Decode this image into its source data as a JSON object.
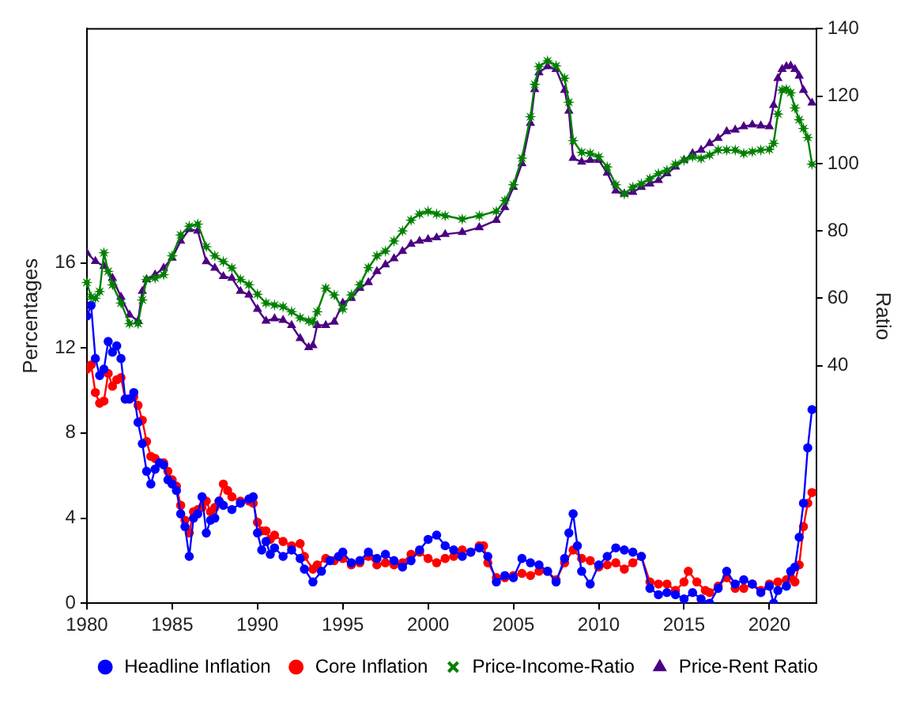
{
  "chart_data": {
    "type": "line",
    "ylabel": "Percentages",
    "y2label": "Ratio",
    "xlim": [
      1980,
      2022.75
    ],
    "xticks": [
      1980,
      1985,
      1990,
      1995,
      2000,
      2005,
      2010,
      2015,
      2020
    ],
    "ylim": [
      0,
      27
    ],
    "yticks": [
      0,
      4,
      8,
      12,
      16
    ],
    "y2lim": [
      -30.5,
      140
    ],
    "y2ticks": [
      40,
      60,
      80,
      100,
      120,
      140
    ],
    "grid": false,
    "legend": "bottom",
    "line_style": "solid",
    "series": [
      {
        "name": "Headline Inflation",
        "color": "#0000ff",
        "marker": "circle",
        "x": [
          1980,
          1980.25,
          1980.5,
          1980.75,
          1981,
          1981.25,
          1981.5,
          1981.75,
          1982,
          1982.25,
          1982.5,
          1982.75,
          1983,
          1983.25,
          1983.5,
          1983.75,
          1984,
          1984.25,
          1984.5,
          1984.75,
          1985,
          1985.25,
          1985.5,
          1985.75,
          1986,
          1986.25,
          1986.5,
          1986.75,
          1987,
          1987.25,
          1987.5,
          1987.75,
          1988,
          1988.5,
          1989,
          1989.5,
          1989.75,
          1990,
          1990.25,
          1990.5,
          1990.75,
          1991,
          1991.5,
          1992,
          1992.5,
          1992.75,
          1993.25,
          1993.75,
          1994.25,
          1994.75,
          1995,
          1995.5,
          1996,
          1996.5,
          1997,
          1997.5,
          1998,
          1998.5,
          1999,
          1999.5,
          2000,
          2000.5,
          2001,
          2001.5,
          2002,
          2002.5,
          2003,
          2003.5,
          2004,
          2004.5,
          2005,
          2005.5,
          2006,
          2006.5,
          2007,
          2007.5,
          2008,
          2008.25,
          2008.5,
          2008.75,
          2009,
          2009.5,
          2010,
          2010.5,
          2011,
          2011.5,
          2012,
          2012.5,
          2013,
          2013.5,
          2014,
          2014.5,
          2015,
          2015.5,
          2016,
          2016.5,
          2017,
          2017.5,
          2018,
          2018.5,
          2019,
          2019.5,
          2020,
          2020.25,
          2020.5,
          2021,
          2021.25,
          2021.5,
          2021.75,
          2022,
          2022.25,
          2022.5
        ],
        "values": [
          13.5,
          14,
          11.5,
          10.7,
          11,
          12.3,
          11.8,
          12.1,
          11.5,
          9.6,
          9.6,
          9.9,
          8.5,
          7.5,
          6.2,
          5.6,
          6.3,
          6.6,
          6.5,
          5.8,
          5.6,
          5.3,
          4.2,
          3.6,
          2.2,
          4.0,
          4.2,
          5.0,
          3.3,
          3.9,
          4.0,
          4.8,
          4.6,
          4.4,
          4.7,
          4.9,
          5.0,
          3.3,
          2.5,
          2.9,
          2.3,
          2.6,
          2.2,
          2.5,
          2.1,
          1.6,
          1.0,
          1.5,
          2.0,
          2.2,
          2.4,
          1.9,
          2.0,
          2.4,
          2.1,
          2.3,
          2.0,
          1.7,
          2.0,
          2.5,
          3.0,
          3.2,
          2.7,
          2.5,
          2.2,
          2.4,
          2.6,
          2.2,
          1.0,
          1.3,
          1.2,
          2.1,
          1.9,
          1.8,
          1.5,
          1.0,
          2.1,
          3.3,
          4.2,
          2.7,
          1.5,
          0.9,
          1.8,
          2.2,
          2.6,
          2.5,
          2.4,
          2.2,
          0.7,
          0.4,
          0.5,
          0.4,
          0.2,
          0.5,
          0.2,
          0.0,
          0.7,
          1.5,
          0.9,
          1.1,
          0.9,
          0.5,
          0.8,
          0.0,
          0.6,
          0.8,
          1.5,
          1.7,
          3.1,
          4.7,
          7.3,
          9.1
        ]
      },
      {
        "name": "Core Inflation",
        "color": "#ff0000",
        "marker": "circle",
        "x": [
          1980,
          1980.25,
          1980.5,
          1980.75,
          1981,
          1981.25,
          1981.5,
          1981.75,
          1982,
          1982.25,
          1982.5,
          1982.75,
          1983,
          1983.25,
          1983.5,
          1983.75,
          1984,
          1984.5,
          1984.75,
          1985,
          1985.25,
          1985.5,
          1985.75,
          1986,
          1986.25,
          1986.5,
          1986.75,
          1987,
          1987.25,
          1987.5,
          1987.75,
          1988,
          1988.25,
          1988.5,
          1989,
          1989.5,
          1989.75,
          1990,
          1990.25,
          1990.5,
          1990.75,
          1991,
          1991.5,
          1992,
          1992.5,
          1992.75,
          1993.25,
          1993.5,
          1994,
          1994.5,
          1995,
          1995.5,
          1996,
          1996.5,
          1997,
          1997.5,
          1998,
          1998.5,
          1999,
          1999.5,
          2000,
          2000.5,
          2001,
          2001.5,
          2002,
          2002.5,
          2003,
          2003.25,
          2003.5,
          2004,
          2004.5,
          2005,
          2005.5,
          2006,
          2006.5,
          2007,
          2007.5,
          2008,
          2008.5,
          2009,
          2009.5,
          2010,
          2010.5,
          2011,
          2011.5,
          2012,
          2012.5,
          2013,
          2013.5,
          2014,
          2014.5,
          2015,
          2015.25,
          2015.75,
          2016.25,
          2016.5,
          2017,
          2017.5,
          2018,
          2018.5,
          2019,
          2019.5,
          2020,
          2020.5,
          2021,
          2021.25,
          2021.5,
          2021.75,
          2022,
          2022.25,
          2022.5
        ],
        "values": [
          11.0,
          11.2,
          9.9,
          9.4,
          9.5,
          10.8,
          10.2,
          10.5,
          10.6,
          9.6,
          9.6,
          9.7,
          9.3,
          8.6,
          7.6,
          6.9,
          6.8,
          6.6,
          6.2,
          5.8,
          5.5,
          4.6,
          3.9,
          3.3,
          4.3,
          4.4,
          4.5,
          4.8,
          4.3,
          4.5,
          4.8,
          5.6,
          5.3,
          5.0,
          4.8,
          4.8,
          4.7,
          3.8,
          3.4,
          3.4,
          3.0,
          3.2,
          2.9,
          2.7,
          2.8,
          2.2,
          1.6,
          1.8,
          2.1,
          2.0,
          2.1,
          1.8,
          1.9,
          2.2,
          1.8,
          1.9,
          1.8,
          1.9,
          2.3,
          2.4,
          2.1,
          1.9,
          2.1,
          2.2,
          2.5,
          2.4,
          2.7,
          2.7,
          1.9,
          1.2,
          1.2,
          1.3,
          1.4,
          1.3,
          1.5,
          1.5,
          1.1,
          1.9,
          2.5,
          2.1,
          2.0,
          1.7,
          1.8,
          1.9,
          1.6,
          1.9,
          2.2,
          1.0,
          0.9,
          0.9,
          0.6,
          1.0,
          1.5,
          1.0,
          0.6,
          0.5,
          0.8,
          1.2,
          0.7,
          0.7,
          0.9,
          0.6,
          0.9,
          1.0,
          1.1,
          1.2,
          1.0,
          1.8,
          3.6,
          4.7,
          5.2
        ]
      },
      {
        "name": "Price-Income-Ratio",
        "color": "#008000",
        "marker": "star",
        "axis": "y2",
        "x": [
          1980,
          1980.25,
          1980.5,
          1980.75,
          1981,
          1981.25,
          1981.5,
          1982,
          1982.5,
          1983,
          1983.25,
          1983.5,
          1984,
          1984.5,
          1985,
          1985.5,
          1986,
          1986.5,
          1987,
          1987.5,
          1988,
          1988.5,
          1989,
          1989.5,
          1990,
          1990.5,
          1991,
          1991.5,
          1992,
          1992.5,
          1993,
          1993.25,
          1993.5,
          1994,
          1994.5,
          1995,
          1995.5,
          1996,
          1996.5,
          1997,
          1997.5,
          1998,
          1998.5,
          1999,
          1999.5,
          2000,
          2000.5,
          2001,
          2002,
          2003,
          2004,
          2004.5,
          2005,
          2005.5,
          2006,
          2006.25,
          2006.5,
          2007,
          2007.5,
          2008,
          2008.25,
          2008.5,
          2009,
          2009.5,
          2010,
          2010.5,
          2011,
          2011.5,
          2012,
          2012.5,
          2013,
          2013.5,
          2014,
          2014.5,
          2015,
          2015.5,
          2016,
          2016.5,
          2017,
          2017.5,
          2018,
          2018.5,
          2019,
          2019.5,
          2020,
          2020.25,
          2020.5,
          2020.75,
          2021,
          2021.25,
          2021.5,
          2021.75,
          2022,
          2022.25,
          2022.5
        ],
        "values": [
          64.7,
          60.4,
          60,
          62,
          73.5,
          68,
          64,
          58.6,
          52.5,
          52.5,
          59.5,
          65.6,
          66,
          67,
          72.6,
          78.8,
          81.4,
          82,
          75.3,
          72.6,
          70.9,
          69,
          65.6,
          64,
          61.2,
          58.6,
          58,
          57.5,
          56,
          54.2,
          53.3,
          53,
          56,
          63,
          61,
          56.8,
          61,
          64,
          69.1,
          72.6,
          74,
          77,
          80,
          83.2,
          85,
          85.8,
          85,
          84.5,
          83.5,
          84.5,
          85.8,
          89,
          93.7,
          101.6,
          113.9,
          123.5,
          128.8,
          130.5,
          129,
          125.3,
          118.2,
          106.8,
          103.3,
          103,
          102,
          99,
          93.7,
          91,
          93,
          94,
          95.5,
          97,
          98,
          99.8,
          101,
          102,
          101.5,
          102.5,
          104,
          104,
          104,
          103,
          103.5,
          104,
          104.2,
          106,
          114.7,
          121.8,
          122,
          121,
          116.5,
          113,
          110.4,
          107.7,
          99.8
        ]
      },
      {
        "name": "Price-Rent Ratio",
        "color": "#4b0082",
        "marker": "triangle",
        "axis": "y2",
        "x": [
          1980,
          1980.5,
          1981,
          1981.5,
          1982,
          1982.5,
          1983,
          1983.25,
          1983.5,
          1984,
          1984.5,
          1985,
          1985.5,
          1986,
          1986.5,
          1987,
          1987.5,
          1988,
          1988.5,
          1989,
          1989.5,
          1990,
          1990.5,
          1991,
          1991.5,
          1992,
          1992.5,
          1993,
          1993.25,
          1993.5,
          1994,
          1994.5,
          1995,
          1995.5,
          1996,
          1996.5,
          1997,
          1997.5,
          1998,
          1998.5,
          1999,
          1999.5,
          2000,
          2000.5,
          2001,
          2002,
          2003,
          2004,
          2004.5,
          2005,
          2005.5,
          2006,
          2006.25,
          2006.5,
          2007,
          2007.5,
          2008,
          2008.25,
          2008.5,
          2009,
          2009.5,
          2010,
          2010.5,
          2011,
          2011.5,
          2012,
          2012.5,
          2013,
          2013.5,
          2014,
          2014.5,
          2015,
          2015.5,
          2016,
          2016.5,
          2017,
          2017.5,
          2018,
          2018.5,
          2019,
          2019.5,
          2020,
          2020.25,
          2020.5,
          2020.75,
          2021,
          2021.25,
          2021.5,
          2021.75,
          2022,
          2022.5
        ],
        "values": [
          73.5,
          71,
          69.5,
          66,
          60.4,
          55.1,
          53.3,
          62.1,
          65.6,
          67,
          69,
          72,
          77,
          80.5,
          80,
          70.9,
          69,
          66.5,
          66,
          62.1,
          61,
          56.8,
          53.3,
          54,
          53.5,
          52,
          48.1,
          45.4,
          46,
          52,
          52,
          53,
          58.6,
          60,
          63,
          64.7,
          68,
          70,
          71.8,
          74,
          76.1,
          77,
          77.5,
          78,
          79,
          79.6,
          81,
          83.2,
          87,
          93,
          100,
          112,
          122,
          127,
          128.8,
          128,
          121.8,
          115.6,
          101.6,
          100.5,
          101,
          101,
          97.2,
          91.9,
          91,
          91.5,
          93,
          94,
          95,
          97,
          99,
          101,
          103,
          104,
          106,
          107.5,
          109.5,
          110,
          111,
          111.5,
          111.2,
          111,
          117.3,
          125.3,
          128,
          128.8,
          129,
          128,
          126,
          121.8,
          118
        ]
      }
    ]
  }
}
